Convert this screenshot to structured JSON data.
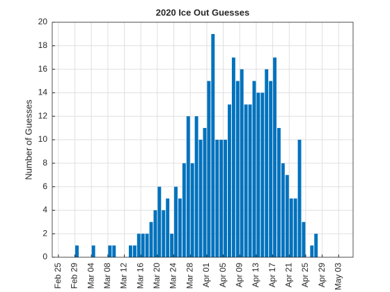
{
  "chart_data": {
    "type": "histogram",
    "title": "2020 Ice Out Guesses",
    "y_label": "Number of Guesses",
    "color": "#0072bd",
    "grid": true,
    "bins": [
      4,
      5,
      6,
      7,
      8,
      9,
      10,
      11,
      12,
      13,
      14,
      15,
      16,
      17,
      18,
      19,
      20,
      21,
      22,
      23,
      24,
      25,
      26,
      27,
      28,
      29,
      30,
      31,
      32,
      33,
      34,
      35,
      36,
      37,
      38,
      39,
      40,
      41,
      42,
      43,
      44,
      45,
      46,
      47,
      48,
      49,
      50,
      51,
      52,
      53,
      54,
      55,
      56,
      57,
      58,
      59,
      60,
      61,
      62,
      63
    ],
    "values": [
      1,
      0,
      0,
      0,
      1,
      0,
      0,
      0,
      1,
      1,
      0,
      0,
      0,
      1,
      1,
      2,
      2,
      2,
      3,
      4,
      6,
      4,
      5,
      2,
      6,
      5,
      8,
      12,
      8,
      12,
      10,
      11,
      15,
      19,
      10,
      10,
      10,
      13,
      17,
      15,
      16,
      13,
      13,
      15,
      14,
      14,
      16,
      15,
      17,
      11,
      8,
      7,
      5,
      5,
      10,
      3,
      0,
      1,
      2
    ],
    "xlim": [
      -1.5,
      71.5
    ],
    "xticks": [
      {
        "value": 0,
        "label": "Feb 25"
      },
      {
        "value": 4,
        "label": "Feb 29"
      },
      {
        "value": 8,
        "label": "Mar 04"
      },
      {
        "value": 12,
        "label": "Mar 08"
      },
      {
        "value": 16,
        "label": "Mar 12"
      },
      {
        "value": 20,
        "label": "Mar 16"
      },
      {
        "value": 24,
        "label": "Mar 20"
      },
      {
        "value": 28,
        "label": "Mar 24"
      },
      {
        "value": 32,
        "label": "Mar 28"
      },
      {
        "value": 36,
        "label": "Apr 01"
      },
      {
        "value": 40,
        "label": "Apr 05"
      },
      {
        "value": 44,
        "label": "Apr 09"
      },
      {
        "value": 48,
        "label": "Apr 13"
      },
      {
        "value": 52,
        "label": "Apr 17"
      },
      {
        "value": 56,
        "label": "Apr 21"
      },
      {
        "value": 60,
        "label": "Apr 25"
      },
      {
        "value": 64,
        "label": "Apr 29"
      },
      {
        "value": 68,
        "label": "May 03"
      }
    ],
    "ylim": [
      0,
      20
    ],
    "yticks": [
      0,
      2,
      4,
      6,
      8,
      10,
      12,
      14,
      16,
      18,
      20
    ]
  }
}
